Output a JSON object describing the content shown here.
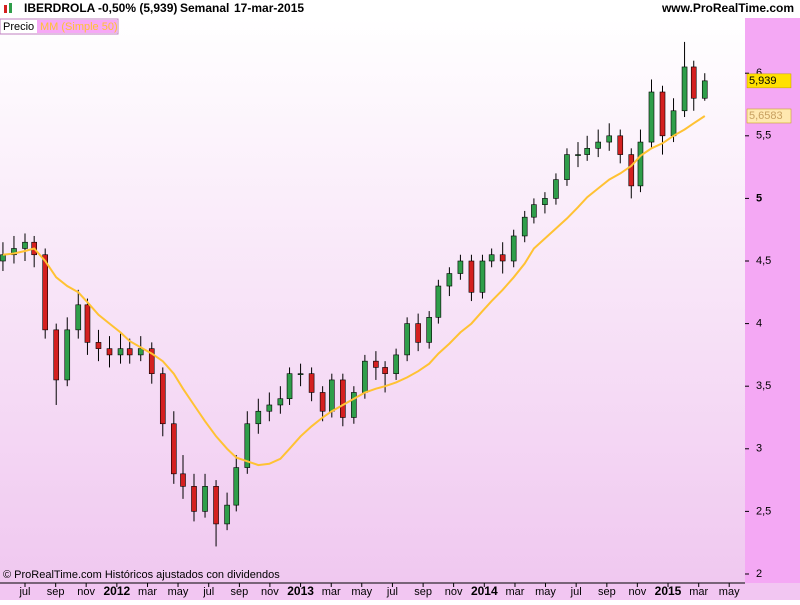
{
  "header": {
    "symbol": "IBERDROLA",
    "change": "-0,50% (5,939)",
    "period": "Semanal",
    "date": "17-mar-2015",
    "site": "www.ProRealTime.com"
  },
  "footer": "© ProRealTime.com  Históricos ajustados con dividendos",
  "chart_data": {
    "type": "candlestick",
    "x": [
      2011.38,
      2011.44,
      2011.5,
      2011.55,
      2011.61,
      2011.67,
      2011.73,
      2011.79,
      2011.84,
      2011.9,
      2011.96,
      2012.02,
      2012.07,
      2012.13,
      2012.19,
      2012.25,
      2012.31,
      2012.36,
      2012.42,
      2012.48,
      2012.54,
      2012.6,
      2012.65,
      2012.71,
      2012.77,
      2012.83,
      2012.89,
      2012.94,
      2013.0,
      2013.06,
      2013.12,
      2013.17,
      2013.23,
      2013.29,
      2013.35,
      2013.41,
      2013.46,
      2013.52,
      2013.58,
      2013.64,
      2013.7,
      2013.75,
      2013.81,
      2013.87,
      2013.93,
      2013.99,
      2014.04,
      2014.1,
      2014.16,
      2014.22,
      2014.27,
      2014.33,
      2014.39,
      2014.45,
      2014.51,
      2014.56,
      2014.62,
      2014.68,
      2014.74,
      2014.8,
      2014.85,
      2014.91,
      2014.97,
      2015.03,
      2015.09,
      2015.14,
      2015.2
    ],
    "series": [
      {
        "name": "Precio",
        "up_color": "#2f9e4a",
        "down_color": "#d42020",
        "open": [
          4.5,
          4.55,
          4.6,
          4.65,
          4.55,
          3.95,
          3.55,
          3.95,
          4.15,
          3.85,
          3.8,
          3.75,
          3.8,
          3.75,
          3.8,
          3.6,
          3.2,
          2.8,
          2.7,
          2.5,
          2.7,
          2.4,
          2.55,
          2.85,
          3.2,
          3.3,
          3.35,
          3.4,
          3.6,
          3.6,
          3.45,
          3.3,
          3.55,
          3.25,
          3.45,
          3.7,
          3.65,
          3.6,
          3.75,
          4.0,
          3.85,
          4.05,
          4.3,
          4.4,
          4.5,
          4.25,
          4.5,
          4.55,
          4.5,
          4.7,
          4.85,
          4.95,
          5.0,
          5.15,
          5.35,
          5.35,
          5.4,
          5.45,
          5.5,
          5.35,
          5.1,
          5.45,
          5.85,
          5.5,
          5.7,
          6.05,
          5.8
        ],
        "high": [
          4.65,
          4.7,
          4.72,
          4.7,
          4.6,
          4.0,
          4.05,
          4.27,
          4.2,
          3.95,
          3.9,
          3.92,
          3.88,
          3.9,
          3.85,
          3.65,
          3.3,
          2.95,
          2.8,
          2.8,
          2.75,
          2.65,
          2.95,
          3.3,
          3.4,
          3.45,
          3.5,
          3.65,
          3.68,
          3.65,
          3.5,
          3.6,
          3.6,
          3.5,
          3.75,
          3.78,
          3.7,
          3.8,
          4.05,
          4.08,
          4.1,
          4.35,
          4.45,
          4.55,
          4.55,
          4.55,
          4.6,
          4.65,
          4.75,
          4.9,
          5.0,
          5.05,
          5.2,
          5.4,
          5.45,
          5.5,
          5.55,
          5.6,
          5.55,
          5.4,
          5.55,
          5.95,
          5.9,
          5.8,
          6.25,
          6.1,
          6.0
        ],
        "low": [
          4.42,
          4.48,
          4.5,
          4.45,
          3.88,
          3.35,
          3.5,
          3.88,
          3.75,
          3.7,
          3.65,
          3.68,
          3.68,
          3.7,
          3.52,
          3.1,
          2.72,
          2.6,
          2.42,
          2.45,
          2.22,
          2.35,
          2.5,
          2.8,
          3.12,
          3.22,
          3.28,
          3.35,
          3.5,
          3.38,
          3.22,
          3.25,
          3.18,
          3.2,
          3.4,
          3.55,
          3.45,
          3.55,
          3.7,
          3.78,
          3.8,
          4.0,
          4.22,
          4.35,
          4.18,
          4.2,
          4.45,
          4.4,
          4.45,
          4.65,
          4.8,
          4.88,
          4.95,
          5.1,
          5.25,
          5.3,
          5.33,
          5.38,
          5.28,
          5.0,
          5.05,
          5.4,
          5.35,
          5.45,
          5.65,
          5.7,
          5.78
        ],
        "close": [
          4.55,
          4.6,
          4.65,
          4.55,
          3.95,
          3.55,
          3.95,
          4.15,
          3.85,
          3.8,
          3.75,
          3.8,
          3.75,
          3.8,
          3.6,
          3.2,
          2.8,
          2.7,
          2.5,
          2.7,
          2.4,
          2.55,
          2.85,
          3.2,
          3.3,
          3.35,
          3.4,
          3.6,
          3.6,
          3.45,
          3.3,
          3.55,
          3.25,
          3.45,
          3.7,
          3.65,
          3.6,
          3.75,
          4.0,
          3.85,
          4.05,
          4.3,
          4.4,
          4.5,
          4.25,
          4.5,
          4.55,
          4.5,
          4.7,
          4.85,
          4.95,
          5.0,
          5.15,
          5.35,
          5.35,
          5.4,
          5.45,
          5.5,
          5.35,
          5.1,
          5.45,
          5.85,
          5.5,
          5.7,
          6.05,
          5.8,
          5.939
        ]
      },
      {
        "name": "MM (Simple 50)",
        "color": "#ffc233",
        "values": [
          4.55,
          4.56,
          4.58,
          4.6,
          4.5,
          4.37,
          4.3,
          4.25,
          4.17,
          4.07,
          4.0,
          3.93,
          3.86,
          3.81,
          3.76,
          3.7,
          3.6,
          3.48,
          3.35,
          3.22,
          3.1,
          3.0,
          2.93,
          2.9,
          2.87,
          2.88,
          2.92,
          3.0,
          3.1,
          3.18,
          3.25,
          3.3,
          3.35,
          3.4,
          3.45,
          3.48,
          3.5,
          3.53,
          3.57,
          3.62,
          3.68,
          3.76,
          3.84,
          3.93,
          4.0,
          4.1,
          4.18,
          4.27,
          4.37,
          4.48,
          4.6,
          4.68,
          4.76,
          4.84,
          4.93,
          5.01,
          5.08,
          5.15,
          5.2,
          5.26,
          5.34,
          5.4,
          5.44,
          5.5,
          5.55,
          5.6,
          5.6583
        ]
      }
    ],
    "price_labels": [
      {
        "value": 5.939,
        "label": "5,939",
        "color": "#ffe000"
      },
      {
        "value": 5.6583,
        "label": "5,6583",
        "color": "#ffe8b0"
      }
    ],
    "xlim": [
      2011.364,
      2015.419
    ],
    "xticks": [
      {
        "value": 2011.5,
        "label": "jul"
      },
      {
        "value": 2011.667,
        "label": "sep"
      },
      {
        "value": 2011.833,
        "label": "nov"
      },
      2012,
      {
        "value": 2012.167,
        "label": "mar"
      },
      {
        "value": 2012.333,
        "label": "may"
      },
      {
        "value": 2012.5,
        "label": "jul"
      },
      {
        "value": 2012.667,
        "label": "sep"
      },
      {
        "value": 2012.833,
        "label": "nov"
      },
      2013,
      {
        "value": 2013.167,
        "label": "mar"
      },
      {
        "value": 2013.333,
        "label": "may"
      },
      {
        "value": 2013.5,
        "label": "jul"
      },
      {
        "value": 2013.667,
        "label": "sep"
      },
      {
        "value": 2013.833,
        "label": "nov"
      },
      2014,
      {
        "value": 2014.167,
        "label": "mar"
      },
      {
        "value": 2014.333,
        "label": "may"
      },
      {
        "value": 2014.5,
        "label": "jul"
      },
      {
        "value": 2014.667,
        "label": "sep"
      },
      {
        "value": 2014.833,
        "label": "nov"
      },
      2015,
      {
        "value": 2015.167,
        "label": "mar"
      },
      {
        "value": 2015.333,
        "label": "may"
      }
    ],
    "ylim": [
      1.928,
      6.441
    ],
    "yticks": [
      2,
      {
        "value": 2.5,
        "label": "2,5"
      },
      3,
      {
        "value": 3.5,
        "label": "3,5"
      },
      4,
      {
        "value": 4.5,
        "label": "4,5"
      },
      5,
      {
        "value": 5.5,
        "label": "5,5"
      },
      6
    ]
  }
}
